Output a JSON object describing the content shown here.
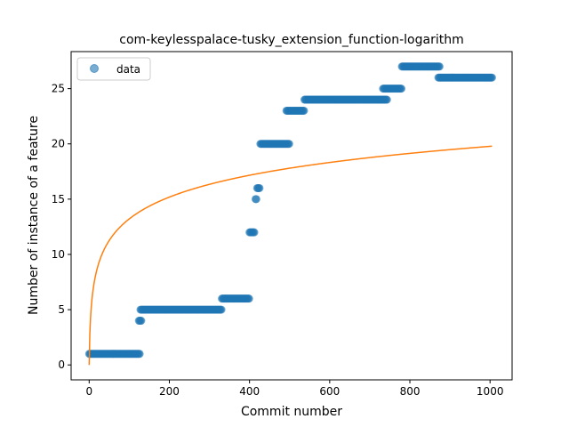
{
  "chart_data": {
    "type": "scatter",
    "title": "com-keylesspalace-tusky_extension_function-logarithm",
    "xlabel": "Commit number",
    "ylabel": "Number of instance of a feature",
    "xlim": [
      -45,
      1055
    ],
    "ylim": [
      -1.35,
      28.35
    ],
    "xticks": [
      0,
      200,
      400,
      600,
      800,
      1000
    ],
    "yticks": [
      0,
      5,
      10,
      15,
      20,
      25
    ],
    "grid": false,
    "legend": {
      "placement": "top-left",
      "entries": [
        "data"
      ]
    },
    "series": [
      {
        "name": "data",
        "kind": "scatter",
        "color": "#1f77b4",
        "segments": [
          {
            "x_start": 0,
            "x_end": 127,
            "y": 1
          },
          {
            "x_start": 124,
            "x_end": 131,
            "y": 4
          },
          {
            "x_start": 128,
            "x_end": 330,
            "y": 5
          },
          {
            "x_start": 331,
            "x_end": 400,
            "y": 6
          },
          {
            "x_start": 400,
            "x_end": 413,
            "y": 12
          },
          {
            "x_start": 415,
            "x_end": 418,
            "y": 15
          },
          {
            "x_start": 419,
            "x_end": 425,
            "y": 16
          },
          {
            "x_start": 427,
            "x_end": 500,
            "y": 20
          },
          {
            "x_start": 492,
            "x_end": 537,
            "y": 23
          },
          {
            "x_start": 537,
            "x_end": 743,
            "y": 24
          },
          {
            "x_start": 733,
            "x_end": 780,
            "y": 25
          },
          {
            "x_start": 780,
            "x_end": 875,
            "y": 27
          },
          {
            "x_start": 871,
            "x_end": 1005,
            "y": 26
          }
        ]
      },
      {
        "kind": "line",
        "color": "#ff7f0e",
        "model": "logarithm",
        "fit": {
          "a": 2.863,
          "b": 0.0
        },
        "x_range": [
          0,
          1005
        ]
      }
    ]
  }
}
